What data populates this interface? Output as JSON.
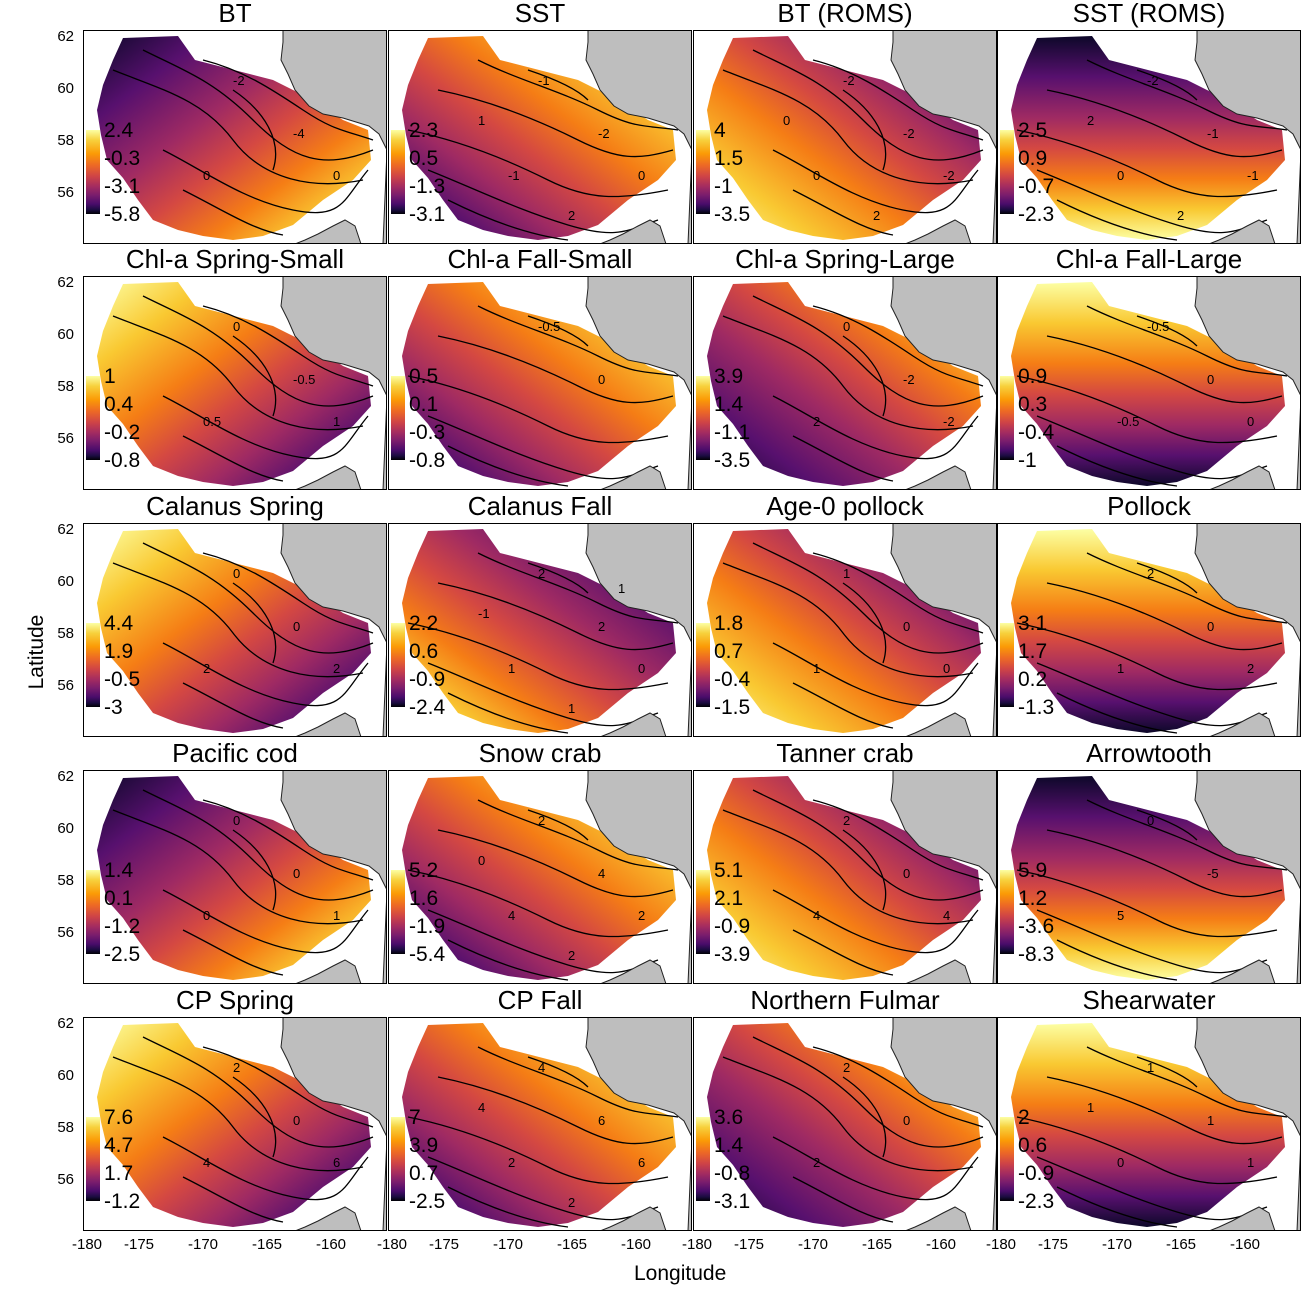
{
  "axes": {
    "xlabel": "Longitude",
    "ylabel": "Latitude",
    "xticks": [
      "-180",
      "-175",
      "-170",
      "-165",
      "-160"
    ],
    "yticks": [
      "62",
      "60",
      "58",
      "56"
    ]
  },
  "panels": [
    {
      "title": "BT",
      "legend": [
        "2.4",
        "-0.3",
        "-3.1",
        "-5.8"
      ],
      "contours": [
        "-2",
        "-4",
        "0",
        "0"
      ]
    },
    {
      "title": "SST",
      "legend": [
        "2.3",
        "0.5",
        "-1.3",
        "-3.1"
      ],
      "contours": [
        "-1",
        "-2",
        "-1",
        "0",
        "1",
        "2"
      ]
    },
    {
      "title": "BT (ROMS)",
      "legend": [
        "4",
        "1.5",
        "-1",
        "-3.5"
      ],
      "contours": [
        "-2",
        "-2",
        "0",
        "-2",
        "0",
        "2"
      ]
    },
    {
      "title": "SST (ROMS)",
      "legend": [
        "2.5",
        "0.9",
        "-0.7",
        "-2.3"
      ],
      "contours": [
        "-2",
        "-1",
        "0",
        "-1",
        "2",
        "2"
      ]
    },
    {
      "title": "Chl-a Spring-Small",
      "legend": [
        "1",
        "0.4",
        "-0.2",
        "-0.8"
      ],
      "contours": [
        "0",
        "-0.5",
        "0.5",
        "1"
      ]
    },
    {
      "title": "Chl-a Fall-Small",
      "legend": [
        "0.5",
        "0.1",
        "-0.3",
        "-0.8"
      ],
      "contours": [
        "-0.5",
        "0"
      ]
    },
    {
      "title": "Chl-a Spring-Large",
      "legend": [
        "3.9",
        "1.4",
        "-1.1",
        "-3.5"
      ],
      "contours": [
        "0",
        "-2",
        "2",
        "-2"
      ]
    },
    {
      "title": "Chl-a Fall-Large",
      "legend": [
        "0.9",
        "0.3",
        "-0.4",
        "-1"
      ],
      "contours": [
        "-0.5",
        "0",
        "-0.5",
        "0"
      ]
    },
    {
      "title": "Calanus Spring",
      "legend": [
        "4.4",
        "1.9",
        "-0.5",
        "-3"
      ],
      "contours": [
        "0",
        "0",
        "2",
        "2"
      ]
    },
    {
      "title": "Calanus Fall",
      "legend": [
        "2.2",
        "0.6",
        "-0.9",
        "-2.4"
      ],
      "contours": [
        "2",
        "2",
        "1",
        "0",
        "-1",
        "1",
        "1"
      ]
    },
    {
      "title": "Age-0 pollock",
      "legend": [
        "1.8",
        "0.7",
        "-0.4",
        "-1.5"
      ],
      "contours": [
        "1",
        "0",
        "1",
        "0"
      ]
    },
    {
      "title": "Pollock",
      "legend": [
        "3.1",
        "1.7",
        "0.2",
        "-1.3"
      ],
      "contours": [
        "2",
        "0",
        "1",
        "2"
      ]
    },
    {
      "title": "Pacific cod",
      "legend": [
        "1.4",
        "0.1",
        "-1.2",
        "-2.5"
      ],
      "contours": [
        "0",
        "0",
        "0",
        "1"
      ]
    },
    {
      "title": "Snow crab",
      "legend": [
        "5.2",
        "1.6",
        "-1.9",
        "-5.4"
      ],
      "contours": [
        "2",
        "4",
        "4",
        "2",
        "0",
        "2"
      ]
    },
    {
      "title": "Tanner crab",
      "legend": [
        "5.1",
        "2.1",
        "-0.9",
        "-3.9"
      ],
      "contours": [
        "2",
        "0",
        "4",
        "4"
      ]
    },
    {
      "title": "Arrowtooth",
      "legend": [
        "5.9",
        "1.2",
        "-3.6",
        "-8.3"
      ],
      "contours": [
        "0",
        "-5",
        "5"
      ]
    },
    {
      "title": "CP Spring",
      "legend": [
        "7.6",
        "4.7",
        "1.7",
        "-1.2"
      ],
      "contours": [
        "2",
        "0",
        "4",
        "6"
      ]
    },
    {
      "title": "CP Fall",
      "legend": [
        "7",
        "3.9",
        "0.7",
        "-2.5"
      ],
      "contours": [
        "4",
        "6",
        "2",
        "6",
        "4",
        "2"
      ]
    },
    {
      "title": "Northern Fulmar",
      "legend": [
        "3.6",
        "1.4",
        "-0.8",
        "-3.1"
      ],
      "contours": [
        "2",
        "0",
        "2"
      ]
    },
    {
      "title": "Shearwater",
      "legend": [
        "2",
        "0.6",
        "-0.9",
        "-2.3"
      ],
      "contours": [
        "1",
        "1",
        "0",
        "1",
        "1"
      ]
    }
  ]
}
